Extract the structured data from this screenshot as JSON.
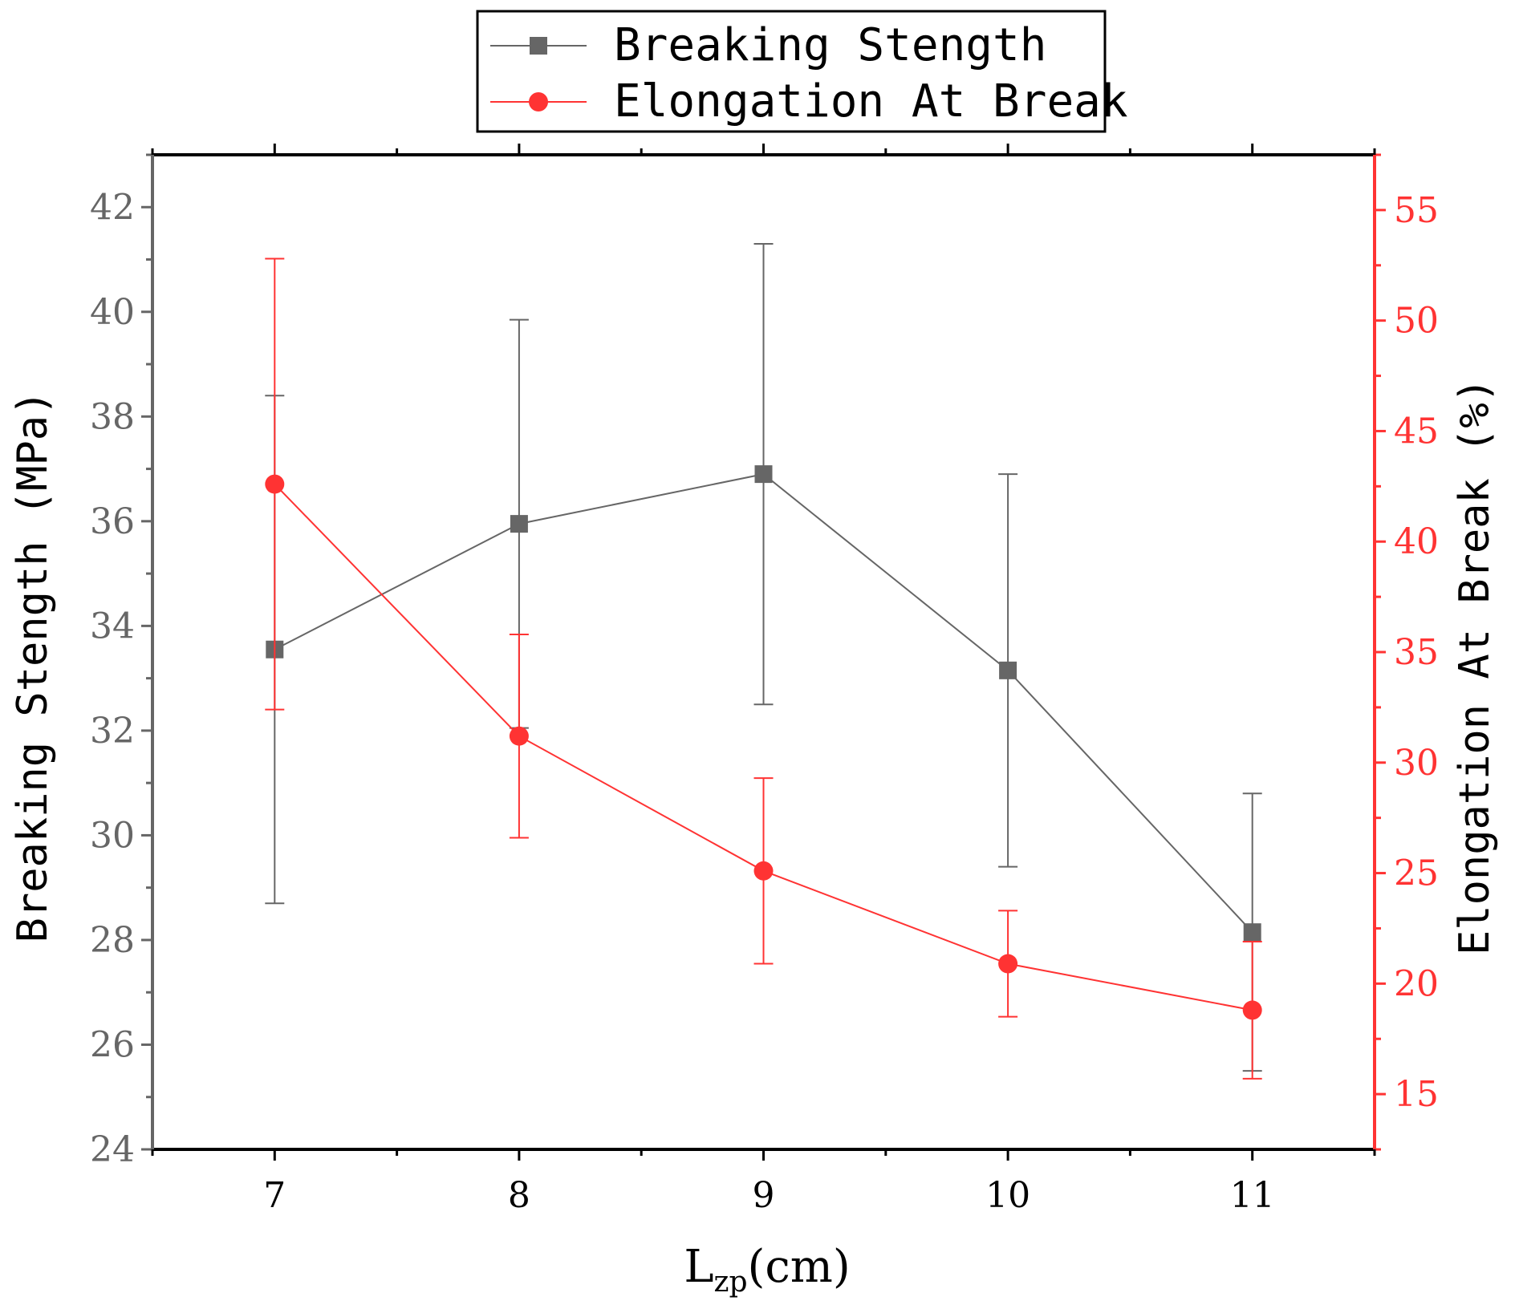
{
  "chart_data": {
    "type": "line",
    "title": "",
    "xlabel": "L",
    "xlabel_subscript": "zp",
    "xlabel_unit": "(cm)",
    "x": [
      7,
      8,
      9,
      10,
      11
    ],
    "x_ticks": [
      "7",
      "8",
      "9",
      "10",
      "11"
    ],
    "xlim": [
      6.5,
      11.5
    ],
    "y_left": {
      "label": "Breaking Stength (MPa)",
      "lim": [
        24,
        43
      ],
      "ticks": [
        24,
        26,
        28,
        30,
        32,
        34,
        36,
        38,
        40,
        42
      ],
      "color": "#666666"
    },
    "y_right": {
      "label": "Elongation At Break (%)",
      "lim": [
        12.5,
        57.5
      ],
      "ticks": [
        15,
        20,
        25,
        30,
        35,
        40,
        45,
        50,
        55
      ],
      "color": "#ff3333"
    },
    "series": [
      {
        "name": "Breaking Stength",
        "axis": "left",
        "marker": "square",
        "color": "#666666",
        "values": [
          33.55,
          35.95,
          36.9,
          33.15,
          28.15
        ],
        "error": [
          4.85,
          3.9,
          4.4,
          3.75,
          2.65
        ]
      },
      {
        "name": "Elongation At Break",
        "axis": "right",
        "marker": "circle",
        "color": "#ff3333",
        "values": [
          42.6,
          31.2,
          25.1,
          20.9,
          18.8
        ],
        "error": [
          10.2,
          4.6,
          4.2,
          2.4,
          3.1
        ]
      }
    ],
    "legend": {
      "position": "top-center",
      "entries": [
        "Breaking Stength",
        "Elongation At Break"
      ]
    }
  }
}
